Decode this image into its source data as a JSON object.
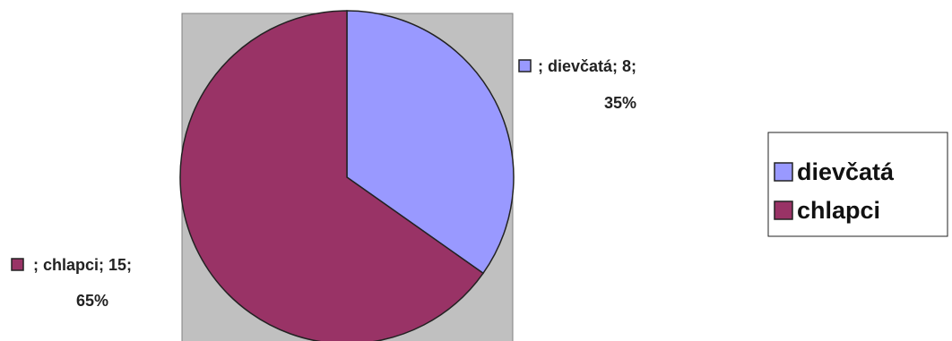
{
  "chart_data": {
    "type": "pie",
    "categories": [
      "dievčatá",
      "chlapci"
    ],
    "values": [
      8,
      15
    ],
    "percentages": [
      35,
      65
    ],
    "colors": [
      "#9999ff",
      "#993366"
    ],
    "data_labels": [
      {
        "line1": "; dievčatá; 8;",
        "line2": "35%"
      },
      {
        "line1": "; chlapci; 15;",
        "line2": "65%"
      }
    ],
    "legend_entries": [
      "dievčatá",
      "chlapci"
    ],
    "legend_position": "right",
    "plot_area_color": "#c0c0c0"
  }
}
